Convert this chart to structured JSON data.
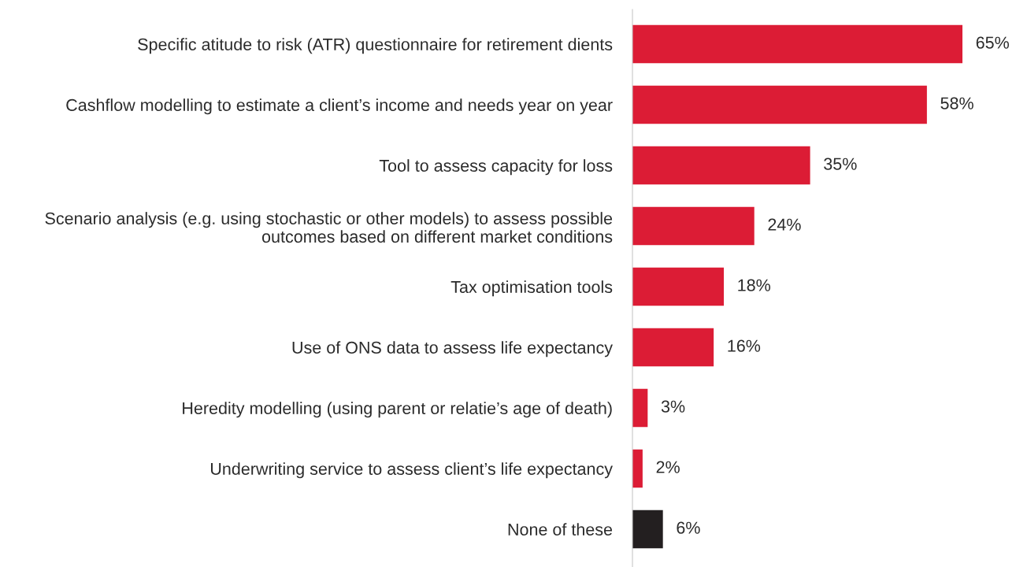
{
  "chart_data": {
    "type": "bar",
    "orientation": "horizontal",
    "categories": [
      "Specific atitude to risk (ATR) questionnaire for retirement dients",
      "Cashflow modelling to estimate a client’s income and needs year on year",
      "Tool to assess capacity for loss",
      "Scenario analysis (e.g. using stochastic or other models) to assess possible\noutcomes based on different market conditions",
      "Tax optimisation tools",
      "Use of ONS data to assess life expectancy",
      "Heredity modelling (using parent or relatie’s age of death)",
      "Underwriting service to assess client’s life expectancy",
      "None of these"
    ],
    "values": [
      65,
      58,
      35,
      24,
      18,
      16,
      3,
      2,
      6
    ],
    "value_labels": [
      "65%",
      "58%",
      "35%",
      "24%",
      "18%",
      "16%",
      "3%",
      "2%",
      "6%"
    ],
    "colors": [
      "#dc1c35",
      "#dc1c35",
      "#dc1c35",
      "#dc1c35",
      "#dc1c35",
      "#dc1c35",
      "#dc1c35",
      "#dc1c35",
      "#231f20"
    ],
    "grid": false,
    "legend": false
  }
}
